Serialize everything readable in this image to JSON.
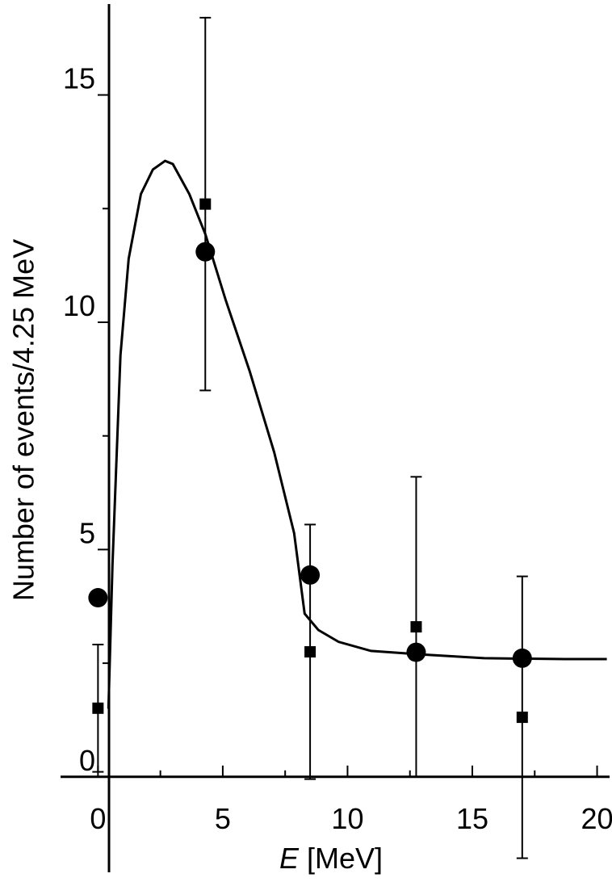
{
  "chart_data": {
    "type": "scatter",
    "x_label": {
      "variable": "E",
      "unit": "[MeV]"
    },
    "y_label": "Number of events/4.25 MeV",
    "xlim": [
      -1.5,
      20.5
    ],
    "ylim": [
      -2.1,
      17
    ],
    "xticks": [
      0,
      5,
      10,
      15,
      20
    ],
    "xminorticks": [
      2.5,
      7.5,
      12.5,
      17.5
    ],
    "yticks": [
      0,
      5,
      10,
      15
    ],
    "yminorticks": [
      2.5,
      7.5,
      12.5
    ],
    "color": "#000000",
    "series": [
      {
        "marker": "circle",
        "x": [
          0,
          4.3,
          8.5,
          12.75,
          17
        ],
        "values": [
          3.94,
          11.55,
          4.44,
          2.74,
          2.61
        ]
      },
      {
        "marker": "square",
        "x": [
          0,
          4.3,
          8.5,
          12.75,
          17
        ],
        "values": [
          1.51,
          12.6,
          2.75,
          3.3,
          1.31
        ],
        "errors": [
          1.4,
          4.1,
          2.8,
          3.3,
          3.1
        ]
      }
    ],
    "curve": {
      "x": [
        0.42,
        0.58,
        0.9,
        1.23,
        1.72,
        2.2,
        2.69,
        3.0,
        3.66,
        4.3,
        5.11,
        6.08,
        7.06,
        7.86,
        8.28,
        8.83,
        9.64,
        10.94,
        12.75,
        15.47,
        18.7,
        20.39
      ],
      "y": [
        1.5,
        4.65,
        9.27,
        11.4,
        12.82,
        13.36,
        13.55,
        13.48,
        12.82,
        11.94,
        10.5,
        8.92,
        7.14,
        5.36,
        3.59,
        3.23,
        2.97,
        2.77,
        2.7,
        2.61,
        2.59,
        2.59
      ]
    }
  }
}
